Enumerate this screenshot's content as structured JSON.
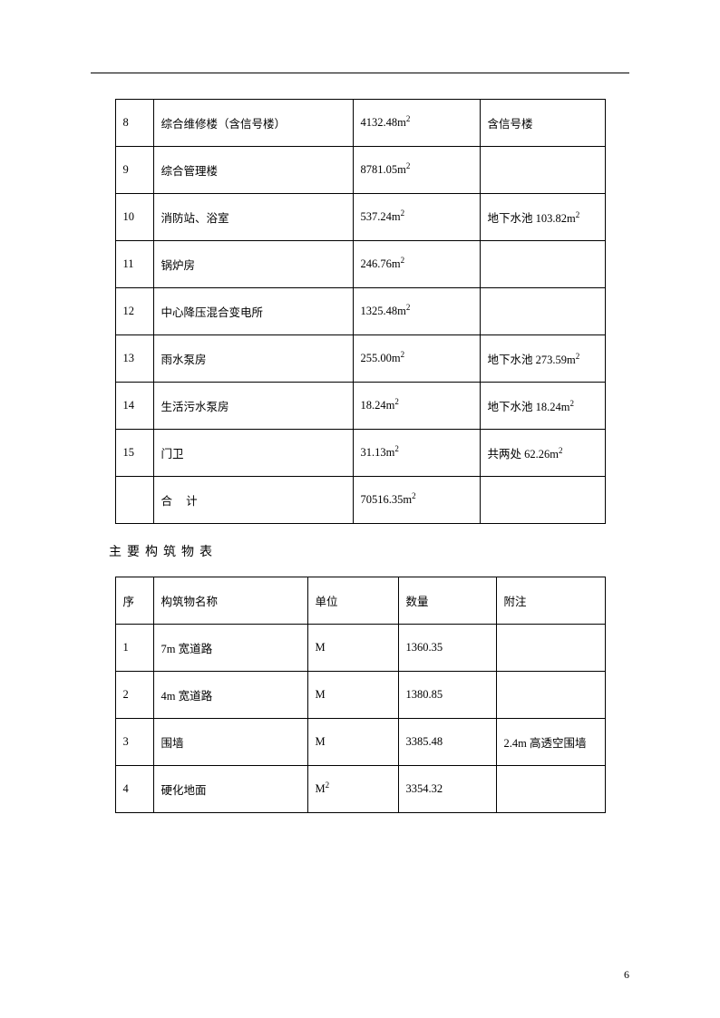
{
  "unit_m2_html": "m<span class=\"sup\">2</span>",
  "table1": {
    "rows": [
      {
        "idx": "8",
        "name": "综合维修楼（含信号楼）",
        "area": "4132.48",
        "note": "含信号楼"
      },
      {
        "idx": "9",
        "name": "综合管理楼",
        "area": "8781.05",
        "note": ""
      },
      {
        "idx": "10",
        "name": "消防站、浴室",
        "area": "537.24",
        "note_prefix": "地下水池 ",
        "note_val": "103.82",
        "note_is_area": true
      },
      {
        "idx": "11",
        "name": "锅炉房",
        "area": "246.76",
        "note": ""
      },
      {
        "idx": "12",
        "name": "中心降压混合变电所",
        "area": "1325.48",
        "note": ""
      },
      {
        "idx": "13",
        "name": "雨水泵房",
        "area": "255.00",
        "note_prefix": "地下水池 ",
        "note_val": "273.59",
        "note_is_area": true
      },
      {
        "idx": "14",
        "name": "生活污水泵房",
        "area": "18.24",
        "note_prefix": "地下水池 ",
        "note_val": "18.24",
        "note_is_area": true
      },
      {
        "idx": "15",
        "name": "门卫",
        "area": "31.13",
        "note_prefix": "共两处 ",
        "note_val": "62.26",
        "note_is_area": true
      }
    ],
    "total_label": "合 计",
    "total_area": "70516.35"
  },
  "section_title": "主要构筑物表",
  "table2": {
    "headers": [
      "序",
      "构筑物名称",
      "单位",
      "数量",
      "附注"
    ],
    "rows": [
      {
        "idx": "1",
        "name": "7m 宽道路",
        "unit": "M",
        "qty": "1360.35",
        "note": ""
      },
      {
        "idx": "2",
        "name": "4m 宽道路",
        "unit": "M",
        "qty": "1380.85",
        "note": ""
      },
      {
        "idx": "3",
        "name": "围墙",
        "unit": "M",
        "qty": "3385.48",
        "note": "2.4m 高透空围墙"
      },
      {
        "idx": "4",
        "name": "硬化地面",
        "unit_is_m2": true,
        "qty": "3354.32",
        "note": ""
      }
    ]
  },
  "page_number": "6"
}
